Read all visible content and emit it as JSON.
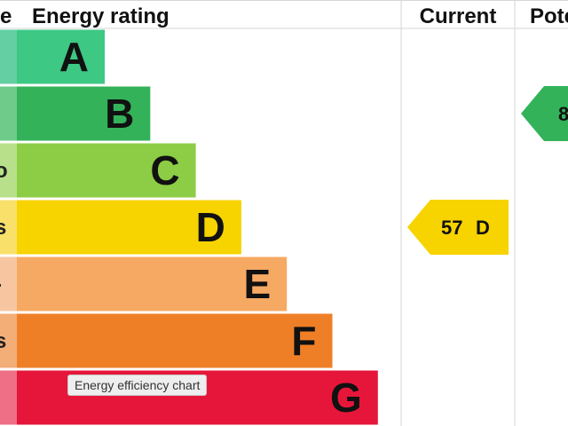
{
  "chart_data": {
    "type": "table",
    "headers": {
      "score_col": "e",
      "rating_col": "Energy rating",
      "current_col": "Current",
      "potential_col": "Pote"
    },
    "bands": [
      {
        "letter": "A",
        "side_label": "",
        "color": "#3dc884",
        "side_color": "#63cfa3"
      },
      {
        "letter": "B",
        "side_label": "",
        "color": "#33b25a",
        "side_color": "#6ecb8a"
      },
      {
        "letter": "C",
        "side_label": "o",
        "color": "#8ccd45",
        "side_color": "#b8e08a"
      },
      {
        "letter": "D",
        "side_label": "s",
        "color": "#f7d300",
        "side_color": "#f8e06a"
      },
      {
        "letter": "E",
        "side_label": "-",
        "color": "#f6a963",
        "side_color": "#f7c6a0"
      },
      {
        "letter": "F",
        "side_label": "s",
        "color": "#ef7f27",
        "side_color": "#f3ad76"
      },
      {
        "letter": "G",
        "side_label": "",
        "color": "#e6163a",
        "side_color": "#ee6f86"
      }
    ],
    "current": {
      "value": 57,
      "letter": "D",
      "color": "#f7d300"
    },
    "potential": {
      "value": "8",
      "band": "B",
      "color": "#33b25a"
    }
  },
  "tooltip": "Energy efficiency chart"
}
